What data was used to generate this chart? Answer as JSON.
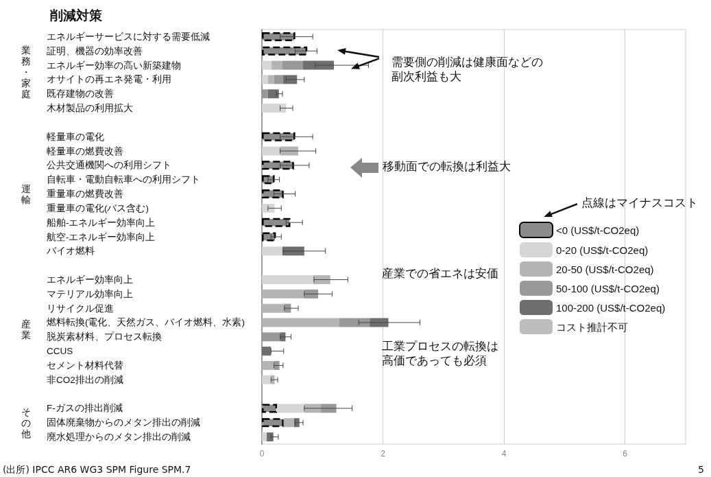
{
  "chart_data": {
    "type": "bar",
    "orientation": "horizontal",
    "stacked": true,
    "title": "削減対策",
    "categories": [
      "エネルギーサービスに対する需要低減",
      "証明、機器の効率改善",
      "エネルギー効率の高い新築建物",
      "オサイトの再エネ発電・利用",
      "既存建物の改善",
      "木材製品の利用拡大",
      null,
      "軽量車の電化",
      "軽量車の燃費改善",
      "公共交通機関への利用シフト",
      "自転車・電動自転車への利用シフト",
      "重量車の燃費改善",
      "重量車の電化(バス含む)",
      "船舶-エネルギー効率向上",
      "航空-エネルギー効率向上",
      "バイオ燃料",
      null,
      "エネルギー効率向上",
      "マテリアル効率向上",
      "リサイクル促進",
      "燃料転換(電化、天然ガス、バイオ燃料、水素)",
      "脱炭素材料、プロセス転換",
      "CCUS",
      "セメント材料代替",
      "非CO2排出の削減",
      null,
      "F-ガスの排出削減",
      "固体廃棄物からのメタン排出の削減",
      "廃水処理からのメタン排出の削減"
    ],
    "series": [
      {
        "name": "<0 (US$/t-CO2eq)",
        "color": "#8c8c8c",
        "line_style": "dashed",
        "values": [
          0.55,
          0.75,
          null,
          null,
          null,
          null,
          null,
          0.55,
          null,
          0.53,
          0.21,
          0.36,
          null,
          0.47,
          0.23,
          null,
          null,
          null,
          null,
          null,
          null,
          null,
          null,
          null,
          null,
          null,
          0.25,
          0.36,
          null
        ],
        "errors": [
          [
            0.3,
            0.84
          ],
          [
            0.55,
            0.91
          ],
          null,
          null,
          null,
          null,
          null,
          [
            0.3,
            0.84
          ],
          null,
          [
            0.3,
            0.78
          ],
          [
            0.1,
            0.29
          ],
          [
            0.2,
            0.55
          ],
          null,
          [
            0.4,
            0.67
          ],
          [
            0.15,
            0.32
          ],
          null,
          null,
          null,
          null,
          null,
          null,
          null,
          null,
          null,
          null,
          null,
          null,
          null,
          null
        ]
      },
      {
        "name": "0-20 (US$/t-CO2eq)",
        "color": "#d6d6d6",
        "values": [
          null,
          null,
          0.16,
          0.1,
          null,
          0.4,
          null,
          null,
          0.3,
          null,
          null,
          null,
          0.21,
          null,
          null,
          0.34,
          null,
          0.85,
          null,
          null,
          null,
          null,
          null,
          null,
          0.15,
          null,
          0.45,
          null,
          0.08
        ],
        "errors": [
          null,
          null,
          null,
          null,
          null,
          [
            0.3,
            0.51
          ],
          null,
          null,
          null,
          null,
          null,
          null,
          [
            0.1,
            0.32
          ],
          null,
          null,
          null,
          null,
          null,
          null,
          null,
          null,
          null,
          null,
          null,
          null,
          null,
          null,
          null,
          null
        ]
      },
      {
        "name": "20-50 (US$/t-CO2eq)",
        "color": "#b4b4b4",
        "values": [
          null,
          null,
          0.18,
          0.1,
          null,
          null,
          null,
          null,
          0.3,
          null,
          null,
          null,
          null,
          null,
          null,
          null,
          null,
          0.28,
          0.7,
          0.37,
          1.28,
          null,
          null,
          0.2,
          0.06,
          null,
          0.27,
          0.17,
          null
        ],
        "errors": [
          null,
          null,
          null,
          null,
          null,
          null,
          null,
          null,
          [
            0.3,
            0.89
          ],
          null,
          null,
          null,
          null,
          null,
          null,
          null,
          null,
          [
            0.86,
            1.42
          ],
          null,
          null,
          null,
          null,
          null,
          null,
          [
            0.15,
            0.26
          ],
          null,
          null,
          null,
          null
        ]
      },
      {
        "name": "50-100 (US$/t-CO2eq)",
        "color": "#999999",
        "values": [
          null,
          null,
          0.34,
          0.15,
          0.1,
          null,
          null,
          null,
          null,
          null,
          null,
          null,
          null,
          null,
          null,
          null,
          null,
          null,
          0.23,
          0.11,
          0.5,
          0.3,
          null,
          0.09,
          null,
          null,
          0.26,
          null,
          null
        ],
        "errors": [
          null,
          null,
          null,
          null,
          null,
          null,
          null,
          null,
          null,
          null,
          null,
          null,
          null,
          null,
          null,
          null,
          null,
          null,
          [
            0.7,
            1.16
          ],
          [
            0.37,
            0.6
          ],
          null,
          null,
          null,
          [
            0.2,
            0.35
          ],
          null,
          null,
          [
            0.7,
            1.49
          ],
          null,
          null
        ]
      },
      {
        "name": "100-200 (US$/t-CO2eq)",
        "color": "#6e6e6e",
        "values": [
          null,
          null,
          0.51,
          0.23,
          0.18,
          null,
          null,
          null,
          null,
          null,
          null,
          null,
          null,
          null,
          null,
          0.36,
          null,
          null,
          null,
          null,
          0.31,
          0.09,
          0.15,
          null,
          null,
          null,
          null,
          0.09,
          0.11
        ],
        "errors": [
          null,
          null,
          [
            0.88,
            1.76
          ],
          [
            0.4,
            0.7
          ],
          [
            0.24,
            0.34
          ],
          null,
          null,
          null,
          null,
          null,
          null,
          null,
          null,
          null,
          null,
          [
            0.35,
            1.05
          ],
          null,
          null,
          null,
          null,
          [
            1.6,
            2.61
          ],
          [
            0.3,
            0.48
          ],
          [
            0.15,
            0.36
          ],
          null,
          null,
          null,
          null,
          [
            0.55,
            0.68
          ],
          [
            0.15,
            0.27
          ]
        ]
      },
      {
        "name": "コスト推計不可",
        "color": "#bdbdbd",
        "values": [
          null,
          null,
          null,
          null,
          null,
          null,
          null,
          null,
          null,
          null,
          null,
          null,
          null,
          null,
          null,
          null,
          null,
          null,
          null,
          null,
          null,
          null,
          null,
          null,
          null,
          null,
          null,
          null,
          null
        ]
      }
    ],
    "xlim": [
      0,
      7
    ],
    "xticks": [
      0,
      2,
      4,
      6
    ],
    "grid": "x",
    "legend": "right",
    "annotations": [
      "業務・家庭",
      "運輸",
      "産業",
      "その他",
      "需要側の削減は健康面などの",
      "副次利益も大",
      "移動面での転換は利益大",
      "産業での省エネは安価",
      "工業プロセスの転換は",
      "高価であっても必須",
      "点線はマイナスコスト",
      "(出所) IPCC AR6 WG3 SPM Figure SPM.7",
      "5"
    ]
  }
}
